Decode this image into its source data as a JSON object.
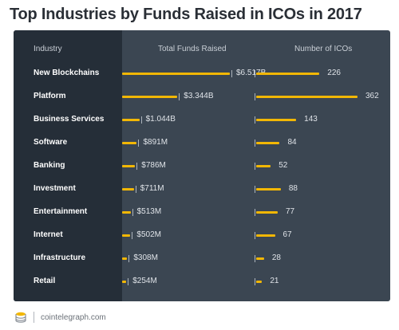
{
  "title": "Top Industries by Funds Raised in ICOs in 2017",
  "headers": {
    "industry": "Industry",
    "funds": "Total Funds Raised",
    "count": "Number of ICOs"
  },
  "footer": {
    "source": "cointelegraph.com",
    "logo_icon": "cointelegraph-logo-icon"
  },
  "colors": {
    "bar": "#f2b705",
    "panel": "#3b4652",
    "label_column": "#252e38"
  },
  "chart_data": {
    "type": "bar",
    "title": "Top Industries by Funds Raised in ICOs in 2017",
    "categories": [
      "New Blockchains",
      "Platform",
      "Business Services",
      "Software",
      "Banking",
      "Investment",
      "Entertainment",
      "Internet",
      "Infrastructure",
      "Retail"
    ],
    "series": [
      {
        "name": "Total Funds Raised",
        "unit": "USD",
        "values": [
          6517000000,
          3344000000,
          1044000000,
          891000000,
          786000000,
          711000000,
          513000000,
          502000000,
          308000000,
          254000000
        ],
        "labels": [
          "$6.517B",
          "$3.344B",
          "$1.044B",
          "$891M",
          "$786M",
          "$711M",
          "$513M",
          "$502M",
          "$308M",
          "$254M"
        ]
      },
      {
        "name": "Number of ICOs",
        "values": [
          226,
          362,
          143,
          84,
          52,
          88,
          77,
          67,
          28,
          21
        ],
        "labels": [
          "226",
          "362",
          "143",
          "84",
          "52",
          "88",
          "77",
          "67",
          "28",
          "21"
        ]
      }
    ]
  }
}
